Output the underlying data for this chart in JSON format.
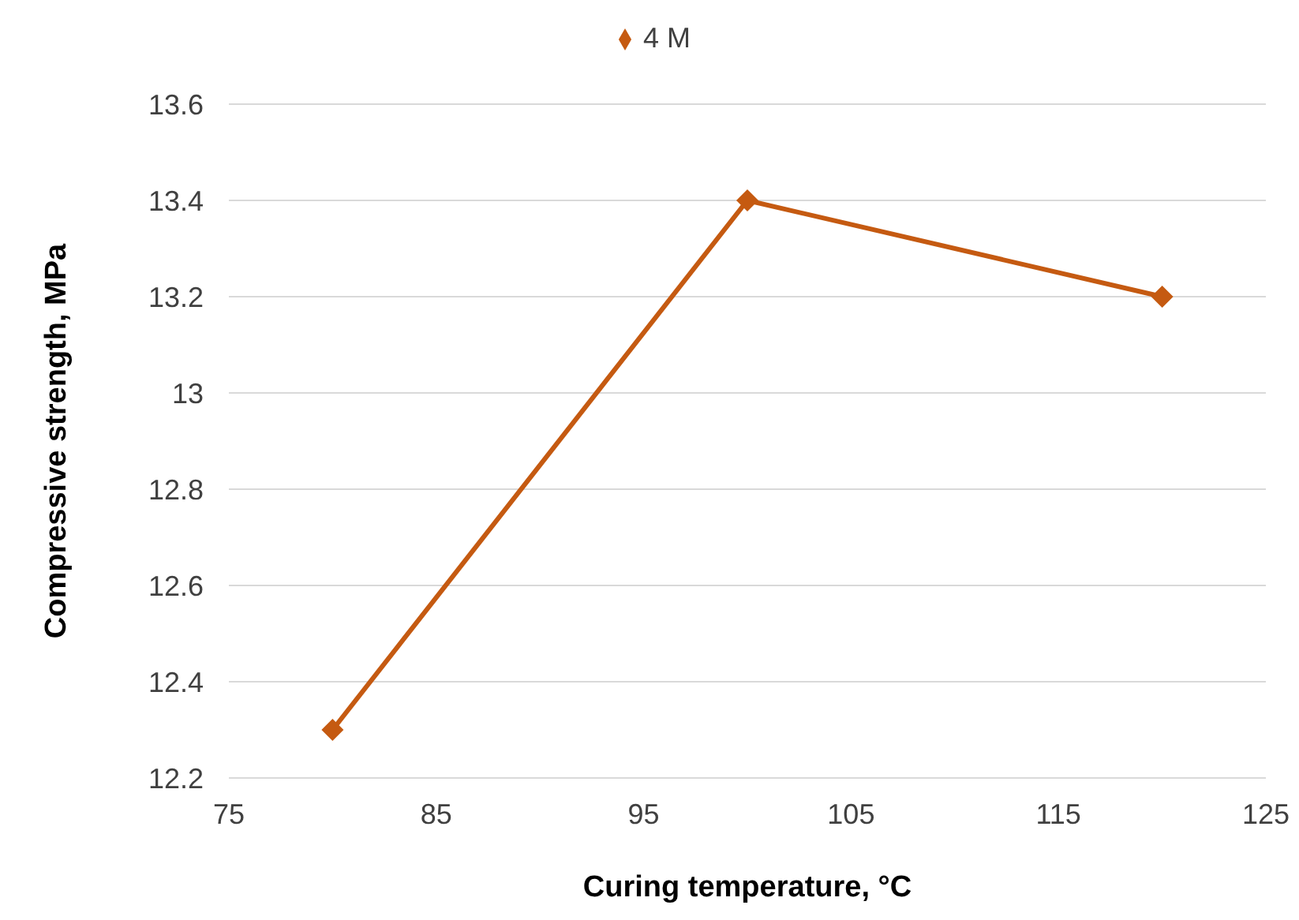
{
  "chart_data": {
    "type": "line",
    "xlabel": "Curing temperature, °C",
    "ylabel": "Compressive strength, MPa",
    "x": [
      80,
      100,
      120
    ],
    "series": [
      {
        "name": "4 M",
        "color": "#c55a11",
        "values": [
          12.3,
          13.4,
          13.2
        ]
      }
    ],
    "xlim": [
      75,
      125
    ],
    "xticks": [
      75,
      85,
      95,
      105,
      115,
      125
    ],
    "ylim": [
      12.2,
      13.6
    ],
    "yticks": [
      12.2,
      12.4,
      12.6,
      12.8,
      13,
      13.2,
      13.4,
      13.6
    ],
    "grid": "y",
    "legend": "top",
    "marker": "diamond",
    "line_style": "solid"
  }
}
